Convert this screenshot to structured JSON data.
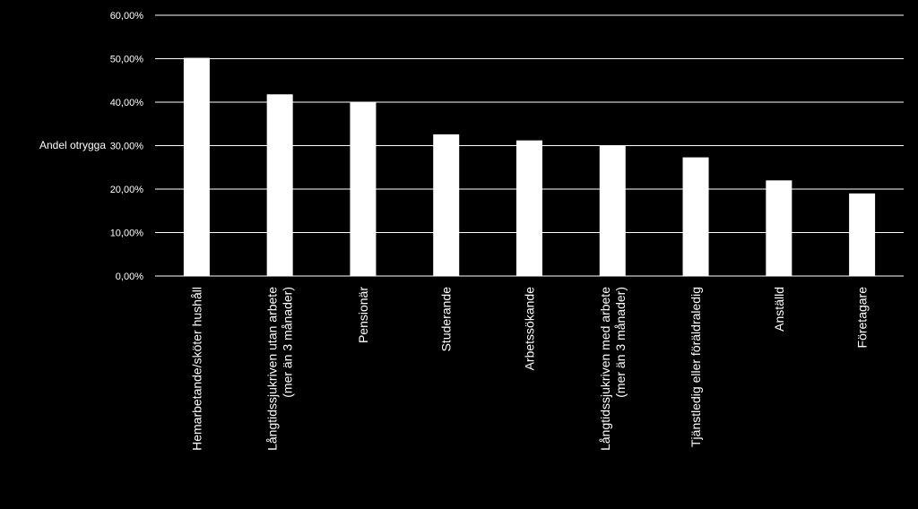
{
  "colors": {
    "background": "#000000",
    "bars": "#ffffff",
    "gridlines": "#ffffff",
    "text": "#ffffff"
  },
  "chart_data": {
    "type": "bar",
    "title": "",
    "xlabel": "",
    "ylabel": "Andel otrygga",
    "ylim": [
      0,
      0.6
    ],
    "y_ticks": [
      0,
      0.1,
      0.2,
      0.3,
      0.4,
      0.5,
      0.6
    ],
    "y_tick_labels": [
      "0,00%",
      "10,00%",
      "20,00%",
      "30,00%",
      "40,00%",
      "50,00%",
      "60,00%"
    ],
    "grid": true,
    "legend": "none",
    "categories": [
      [
        "Hemarbetande/sköter hushåll"
      ],
      [
        "Långtidssjukriven utan arbete",
        "(mer än 3 månader)"
      ],
      [
        "Pensionär"
      ],
      [
        "Studerande"
      ],
      [
        "Arbetssökande"
      ],
      [
        "Långtidssjukriven med arbete",
        "(mer än 3 månader)"
      ],
      [
        "Tjänstledig eller föräldraledig"
      ],
      [
        "Anställd"
      ],
      [
        "Företagare"
      ]
    ],
    "values": [
      0.502,
      0.418,
      0.4,
      0.326,
      0.312,
      0.3,
      0.273,
      0.22,
      0.19
    ]
  }
}
